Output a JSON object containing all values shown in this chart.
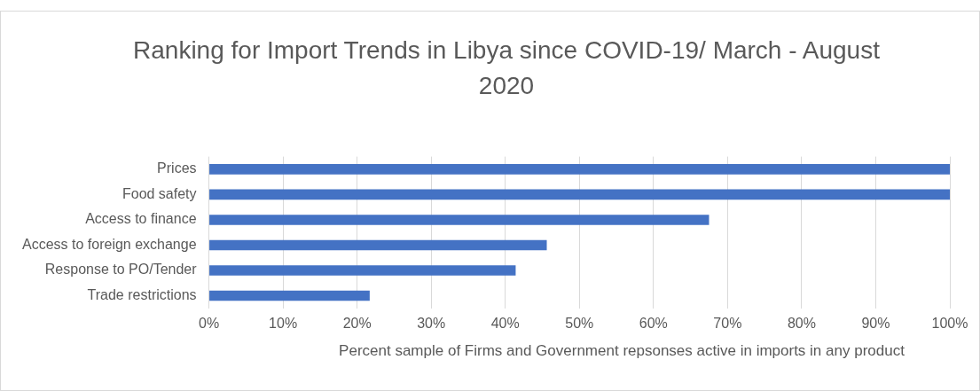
{
  "chart_data": {
    "type": "bar",
    "orientation": "horizontal",
    "title": "Ranking for Import Trends in Libya since COVID-19/ March - August 2020",
    "xlabel": "Percent sample of Firms and Government  repsonses active in imports in any product",
    "categories": [
      "Prices",
      "Food safety",
      "Access to finance",
      "Access to foreign exchange",
      "Response to PO/Tender",
      "Trade restrictions"
    ],
    "values": [
      100,
      100,
      67.5,
      45.6,
      41.4,
      21.7
    ],
    "color": "#4472c4",
    "xlim": [
      0,
      100
    ],
    "xticks": [
      {
        "value": 0,
        "label": "0%"
      },
      {
        "value": 10,
        "label": "10%"
      },
      {
        "value": 20,
        "label": "20%"
      },
      {
        "value": 30,
        "label": "30%"
      },
      {
        "value": 40,
        "label": "40%"
      },
      {
        "value": 50,
        "label": "50%"
      },
      {
        "value": 60,
        "label": "60%"
      },
      {
        "value": 70,
        "label": "70%"
      },
      {
        "value": 80,
        "label": "80%"
      },
      {
        "value": 90,
        "label": "90%"
      },
      {
        "value": 100,
        "label": "100%"
      }
    ],
    "grid": "x"
  }
}
